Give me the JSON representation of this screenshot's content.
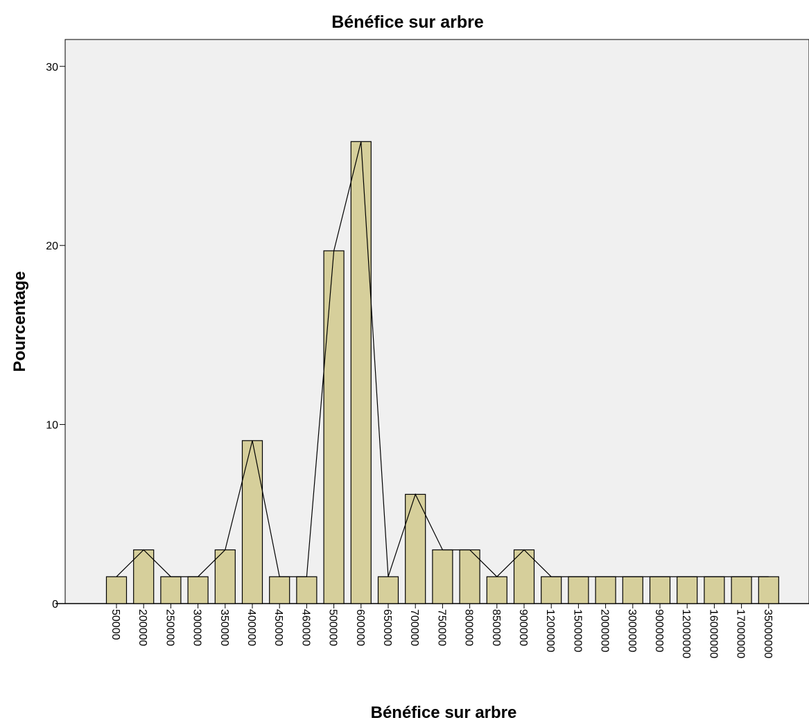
{
  "chart_data": {
    "type": "bar",
    "title": "Bénéfice sur arbre",
    "xlabel": "Bénéfice sur arbre",
    "ylabel": "Pourcentage",
    "ylim": [
      0,
      31.5
    ],
    "yticks": [
      0,
      10,
      20,
      30
    ],
    "grid": false,
    "legend": "none",
    "overlay": "line connecting bar tops (frequency polygon)",
    "categories": [
      "50000",
      "200000",
      "250000",
      "300000",
      "350000",
      "400000",
      "450000",
      "460000",
      "500000",
      "600000",
      "650000",
      "700000",
      "750000",
      "800000",
      "850000",
      "900000",
      "1200000",
      "1500000",
      "2000000",
      "3000000",
      "9000000",
      "12000000",
      "16000000",
      "17000000",
      "35000000"
    ],
    "values": [
      1.5,
      3.0,
      1.5,
      1.5,
      3.0,
      9.1,
      1.5,
      1.5,
      19.7,
      25.8,
      1.5,
      6.1,
      3.0,
      3.0,
      1.5,
      3.0,
      1.5,
      1.5,
      1.5,
      1.5,
      1.5,
      1.5,
      1.5,
      1.5,
      1.5
    ],
    "colors": {
      "bar_fill": "#d6cf9b",
      "bar_stroke": "#000000",
      "plot_background": "#f0f0f0",
      "line": "#000000"
    }
  }
}
